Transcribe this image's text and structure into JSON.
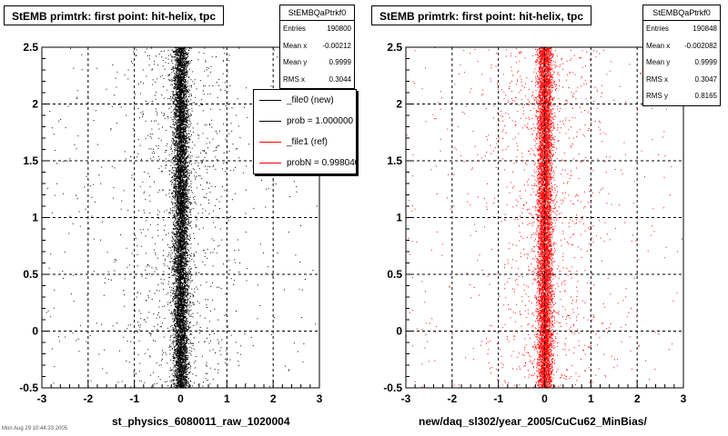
{
  "chart_data": [
    {
      "type": "scatter",
      "title": "StEMB primtrk: first point: hit-helix, tpc",
      "xlabel": "st_physics_6080011_raw_1020004",
      "ylabel": "",
      "xlim": [
        -3,
        3
      ],
      "ylim": [
        -0.5,
        2.5
      ],
      "x_ticks": [
        "-3",
        "-2",
        "-1",
        "0",
        "1",
        "2",
        "3"
      ],
      "y_ticks": [
        "-0.5",
        "0",
        "0.5",
        "1",
        "1.5",
        "2",
        "2.5"
      ],
      "grid": true,
      "marker_color": "#000000",
      "distribution": {
        "x_center": 0,
        "x_core_halfwidth": 0.15,
        "y_min": -0.5,
        "y_max": 2.5
      },
      "stats": {
        "name": "StEMBQaPtrkf0",
        "rows": [
          {
            "label": "Entries",
            "value": "190800"
          },
          {
            "label": "Mean x",
            "value": "-0.00212"
          },
          {
            "label": "Mean y",
            "value": "0.9999"
          },
          {
            "label": "RMS x",
            "value": "0.3044"
          }
        ]
      },
      "legend": {
        "placement": "right",
        "entries": [
          {
            "label": "_file0 (new)",
            "color": "#000000"
          },
          {
            "label": "prob = 1.000000",
            "color": "#000000"
          },
          {
            "label": "_file1 (ref)",
            "color": "#ff0000"
          },
          {
            "label": "probN = 0.998040",
            "color": "#ff0000"
          }
        ]
      }
    },
    {
      "type": "scatter",
      "title": "StEMB primtrk: first point: hit-helix, tpc",
      "xlabel": "new/daq_sl302/year_2005/CuCu62_MinBias/",
      "ylabel": "",
      "xlim": [
        -3,
        3
      ],
      "ylim": [
        -0.5,
        2.5
      ],
      "x_ticks": [
        "-3",
        "-2",
        "-1",
        "0",
        "1",
        "2",
        "3"
      ],
      "y_ticks": [
        "-0.5",
        "0",
        "0.5",
        "1",
        "1.5",
        "2",
        "2.5"
      ],
      "grid": true,
      "marker_color": "#ff0000",
      "distribution": {
        "x_center": 0,
        "x_core_halfwidth": 0.15,
        "y_min": -0.5,
        "y_max": 2.5
      },
      "stats": {
        "name": "StEMBQaPtrkf0",
        "rows": [
          {
            "label": "Entries",
            "value": "190848"
          },
          {
            "label": "Mean x",
            "value": "-0.002082"
          },
          {
            "label": "Mean y",
            "value": "0.9999"
          },
          {
            "label": "RMS x",
            "value": "0.3047"
          },
          {
            "label": "RMS y",
            "value": "0.8165"
          }
        ]
      }
    }
  ],
  "footer": "Mon Aug 29 10:44:33 2005"
}
